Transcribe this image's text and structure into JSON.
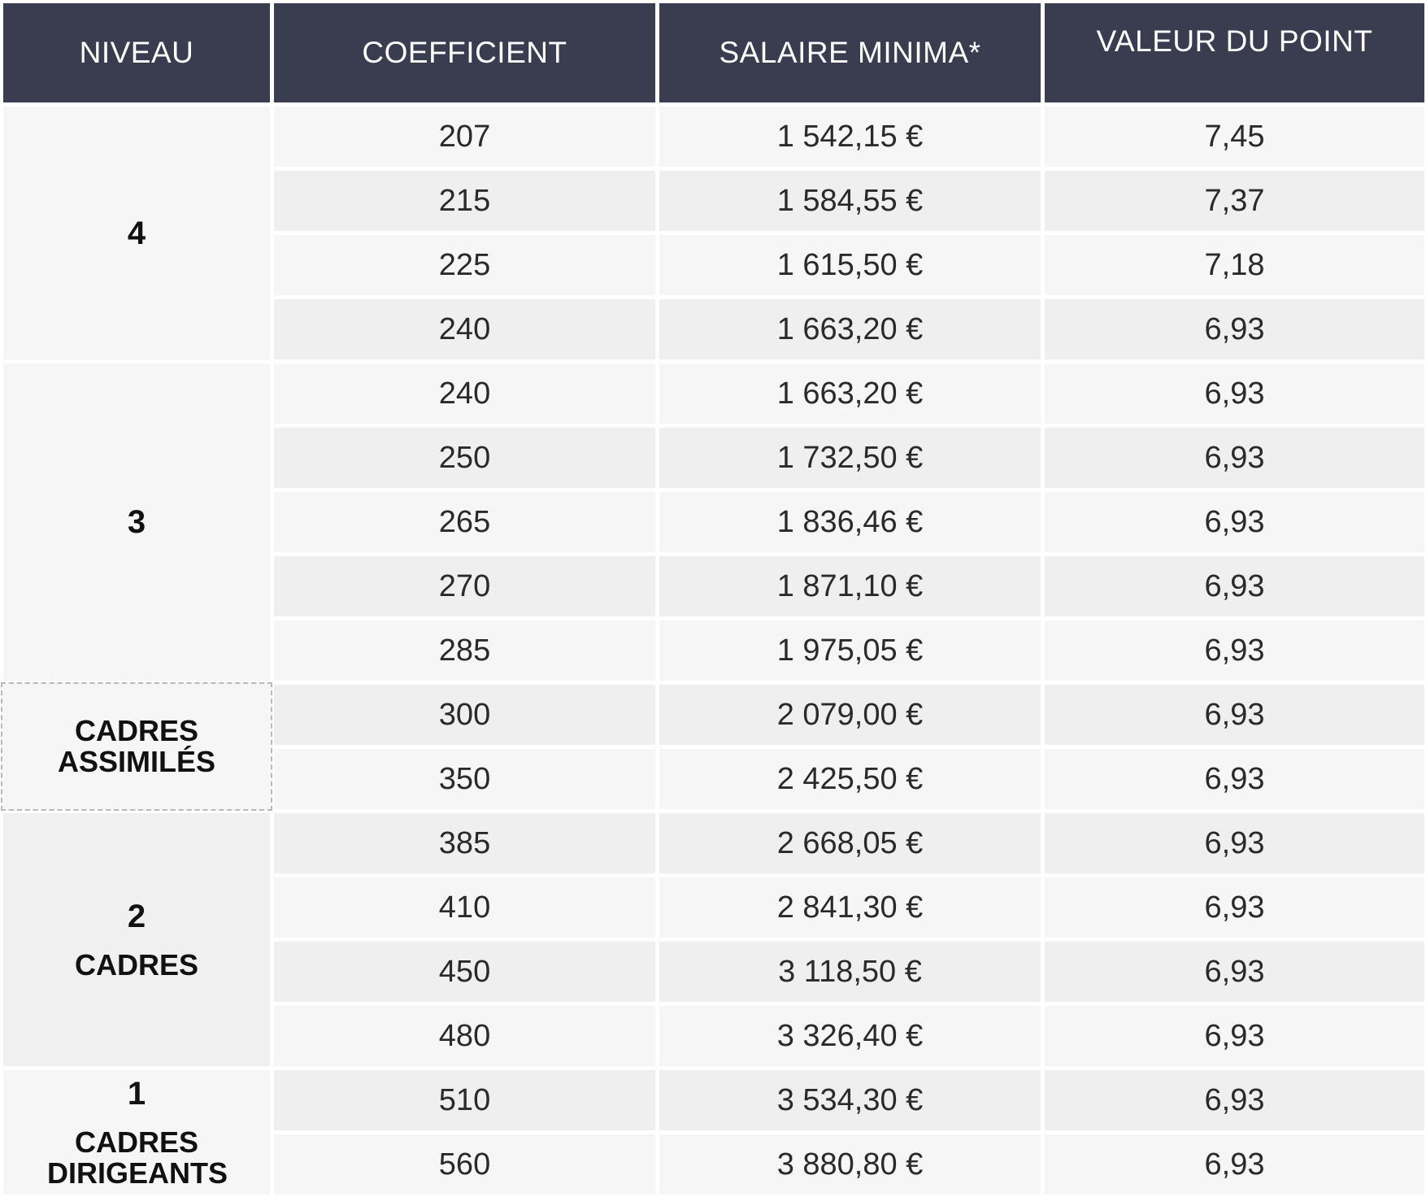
{
  "colors": {
    "header_bg": "#3a3d4f",
    "header_text": "#ffffff",
    "row_light": "#f6f6f6",
    "row_dark": "#efefef",
    "group_bg_light": "#f6f6f6",
    "group_bg_dark": "#f0f0f0",
    "text": "#2a2a2a"
  },
  "headers": {
    "niveau": "NIVEAU",
    "coefficient": "COEFFICIENT",
    "salaire": "SALAIRE MINIMA*",
    "valeur": "VALEUR DU POINT"
  },
  "groups": [
    {
      "number": "4",
      "label": ""
    },
    {
      "number": "3",
      "label": ""
    },
    {
      "number": "",
      "label": "CADRES ASSIMILÉS"
    },
    {
      "number": "2",
      "label": "CADRES"
    },
    {
      "number": "1",
      "label": "CADRES DIRIGEANTS"
    }
  ],
  "rows": [
    {
      "coefficient": "207",
      "salaire": "1 542,15 €",
      "valeur": "7,45"
    },
    {
      "coefficient": "215",
      "salaire": "1 584,55 €",
      "valeur": "7,37"
    },
    {
      "coefficient": "225",
      "salaire": "1 615,50 €",
      "valeur": "7,18"
    },
    {
      "coefficient": "240",
      "salaire": "1 663,20 €",
      "valeur": "6,93"
    },
    {
      "coefficient": "240",
      "salaire": "1 663,20 €",
      "valeur": "6,93"
    },
    {
      "coefficient": "250",
      "salaire": "1 732,50 €",
      "valeur": "6,93"
    },
    {
      "coefficient": "265",
      "salaire": "1 836,46 €",
      "valeur": "6,93"
    },
    {
      "coefficient": "270",
      "salaire": "1 871,10 €",
      "valeur": "6,93"
    },
    {
      "coefficient": "285",
      "salaire": "1 975,05 €",
      "valeur": "6,93"
    },
    {
      "coefficient": "300",
      "salaire": "2 079,00 €",
      "valeur": "6,93"
    },
    {
      "coefficient": "350",
      "salaire": "2 425,50 €",
      "valeur": "6,93"
    },
    {
      "coefficient": "385",
      "salaire": "2 668,05 €",
      "valeur": "6,93"
    },
    {
      "coefficient": "410",
      "salaire": "2 841,30 €",
      "valeur": "6,93"
    },
    {
      "coefficient": "450",
      "salaire": "3 118,50 €",
      "valeur": "6,93"
    },
    {
      "coefficient": "480",
      "salaire": "3 326,40 €",
      "valeur": "6,93"
    },
    {
      "coefficient": "510",
      "salaire": "3 534,30 €",
      "valeur": "6,93"
    },
    {
      "coefficient": "560",
      "salaire": "3 880,80 €",
      "valeur": "6,93"
    }
  ]
}
